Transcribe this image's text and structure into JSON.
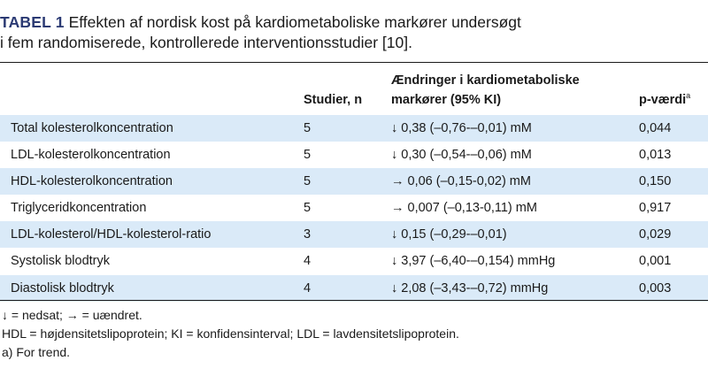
{
  "caption": {
    "label": "TABEL 1",
    "line1": " Effekten af nordisk kost på kardiometaboliske markører undersøgt",
    "line2": "i fem randomiserede, kontrollerede interventionsstudier [10]."
  },
  "table": {
    "headers": {
      "col1": "",
      "col2": "Studier, n",
      "col3_line1": "Ændringer i kardiometaboliske",
      "col3_line2": "markører (95% KI)",
      "col4": "p-værdi",
      "col4_sup": "a"
    },
    "rows": [
      {
        "marker": "Total kolesterolkoncentration",
        "studies": "5",
        "change": "↓ 0,38 (–0,76-–0,01) mM",
        "p": "0,044"
      },
      {
        "marker": "LDL-kolesterolkoncentration",
        "studies": "5",
        "change": "↓ 0,30 (–0,54-–0,06) mM",
        "p": "0,013"
      },
      {
        "marker": "HDL-kolesterolkoncentration",
        "studies": "5",
        "change": "→ 0,06 (–0,15-0,02) mM",
        "p": "0,150"
      },
      {
        "marker": "Triglyceridkoncentration",
        "studies": "5",
        "change": "→ 0,007 (–0,13-0,11) mM",
        "p": "0,917"
      },
      {
        "marker": "LDL-kolesterol/HDL-kolesterol-ratio",
        "studies": "3",
        "change": "↓ 0,15 (–0,29-–0,01)",
        "p": "0,029"
      },
      {
        "marker": "Systolisk blodtryk",
        "studies": "4",
        "change": "↓ 3,97 (–6,40-–0,154) mmHg",
        "p": "0,001"
      },
      {
        "marker": "Diastolisk blodtryk",
        "studies": "4",
        "change": "↓ 2,08 (–3,43-–0,72) mmHg",
        "p": "0,003"
      }
    ]
  },
  "footnotes": {
    "arrows": "↓ = nedsat; → = uændret.",
    "abbrev": "HDL = højdensitetslipoprotein; KI = konfidensinterval; LDL = lavdensitetslipoprotein.",
    "a": "a) For trend."
  },
  "colors": {
    "label": "#2b3a73",
    "row_shade": "#daeaf8"
  }
}
